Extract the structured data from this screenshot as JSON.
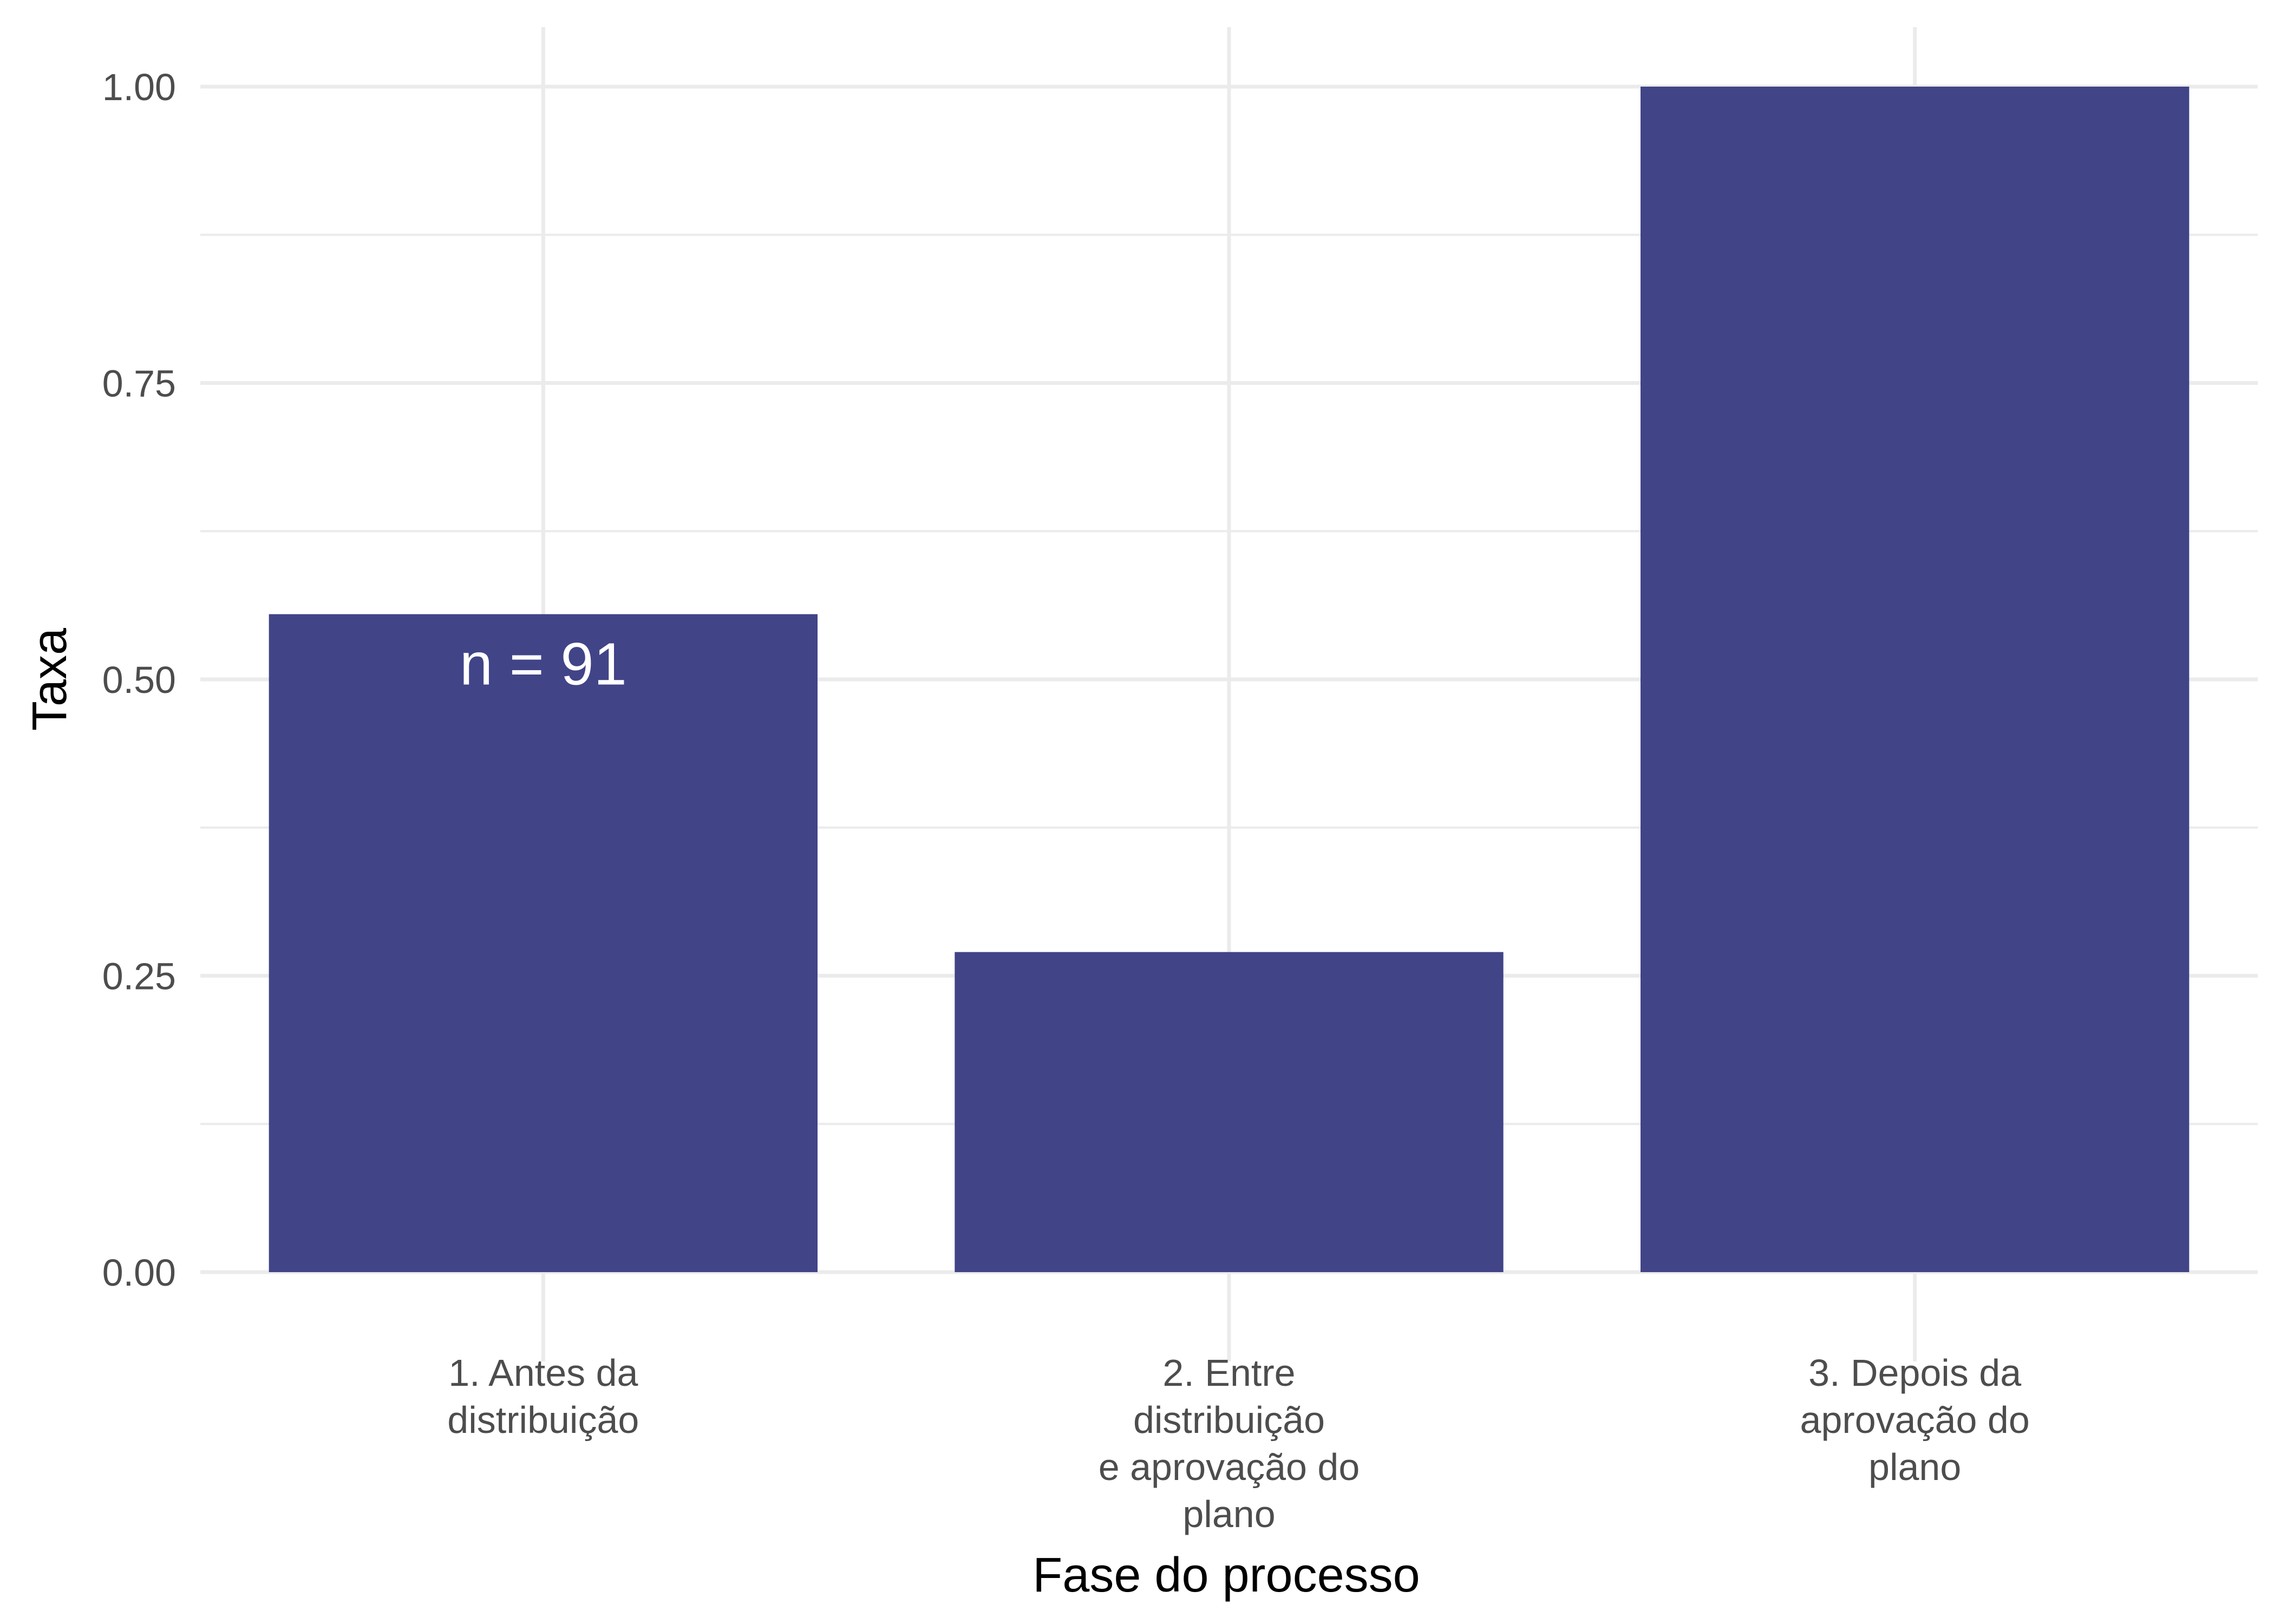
{
  "chart_data": {
    "type": "bar",
    "categories": [
      [
        "1. Antes da",
        "distribuição"
      ],
      [
        "2. Entre",
        "distribuição",
        "e aprovação do",
        "plano"
      ],
      [
        "3. Depois da",
        "aprovação do",
        "plano"
      ]
    ],
    "values": [
      0.555,
      0.27,
      1.0
    ],
    "data_labels": [
      "n = 91",
      "",
      ""
    ],
    "xlabel": "Fase do processo",
    "ylabel": "Taxa",
    "ylim": [
      0,
      1
    ],
    "yticks": [
      0,
      0.25,
      0.5,
      0.75,
      1
    ],
    "ytick_labels": [
      "0.00",
      "0.25",
      "0.50",
      "0.75",
      "1.00"
    ],
    "grid": true,
    "bar_color": "#414487"
  }
}
